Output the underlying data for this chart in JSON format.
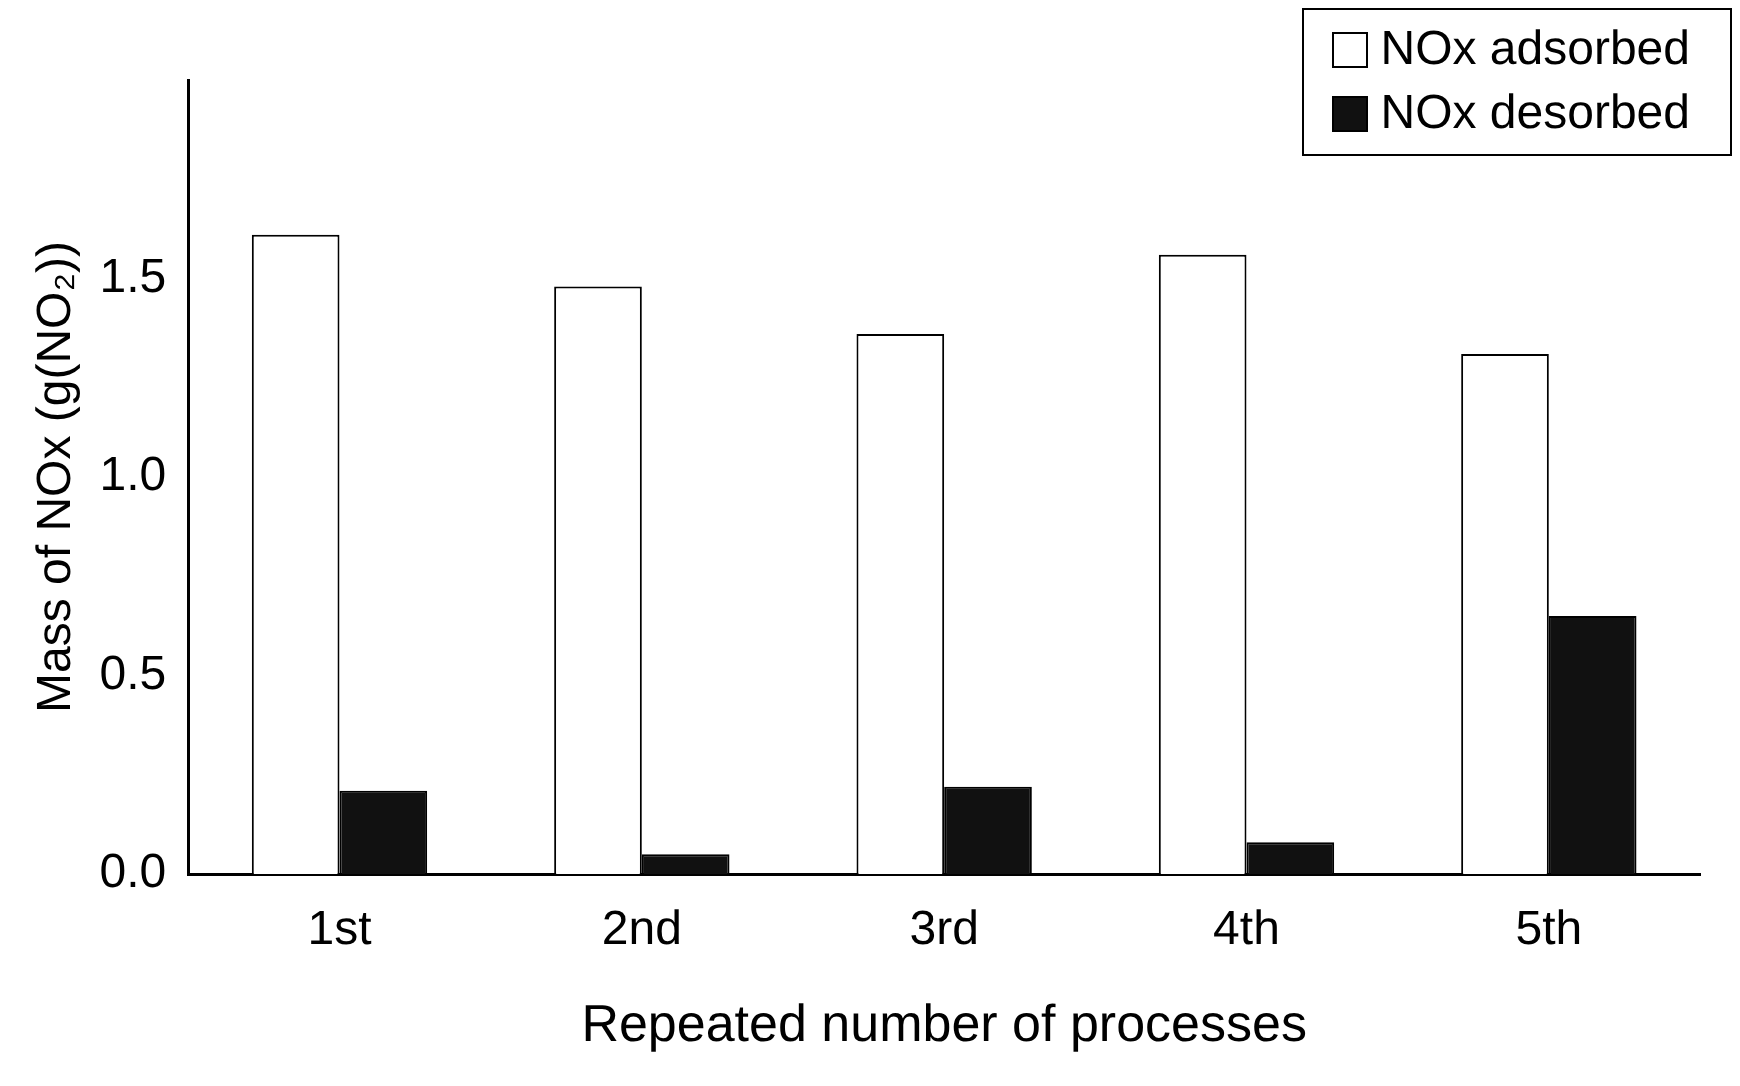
{
  "chart_data": {
    "type": "bar",
    "xlabel": "Repeated number of processes",
    "ylabel": "Mass of NOx (g(NO₂))",
    "categories": [
      "1st",
      "2nd",
      "3rd",
      "4th",
      "5th"
    ],
    "series": [
      {
        "name": "NOx adsorbed",
        "color": "#ffffff",
        "values": [
          1.61,
          1.48,
          1.36,
          1.56,
          1.31
        ]
      },
      {
        "name": "NOx desorbed",
        "color": "#111111",
        "values": [
          0.21,
          0.05,
          0.22,
          0.08,
          0.65
        ]
      }
    ],
    "ylim": [
      0,
      2
    ],
    "yticks": [
      {
        "value": 0,
        "label": "0.0"
      },
      0.5,
      {
        "value": 1,
        "label": "1.0"
      },
      1.5
    ],
    "grid": false,
    "legend": "top right"
  }
}
